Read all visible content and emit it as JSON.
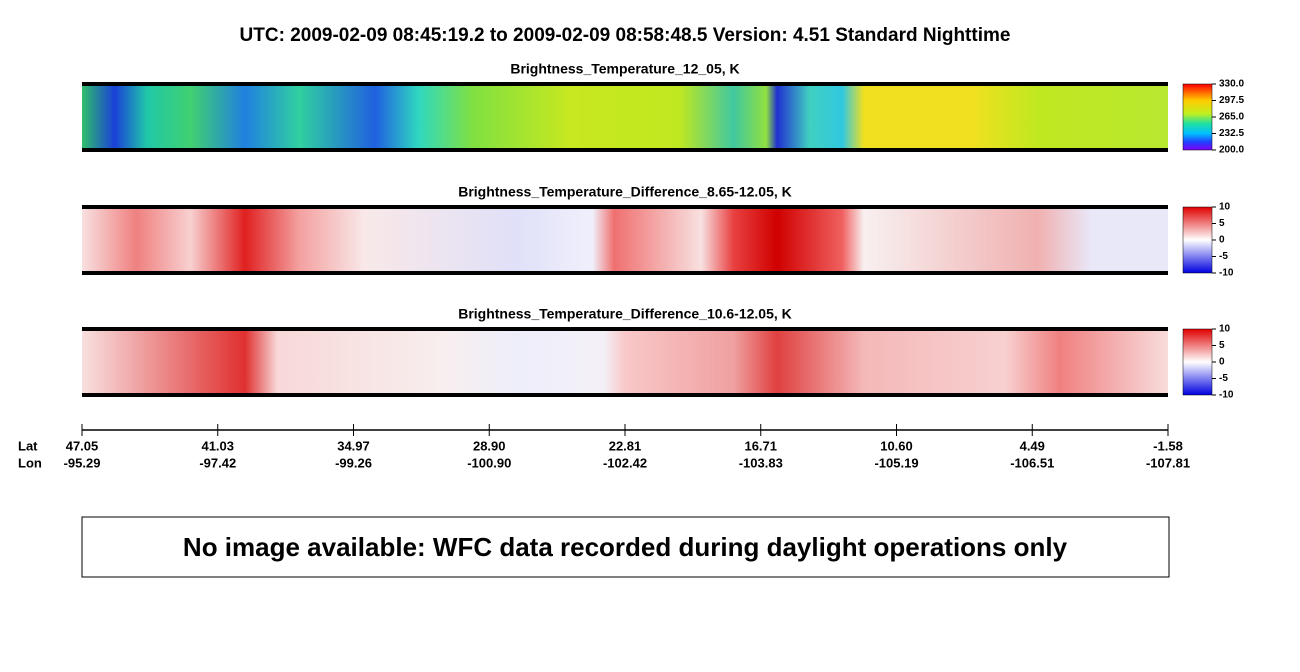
{
  "header": {
    "title": "UTC:  2009-02-09   08:45:19.2  to  2009-02-09   08:58:48.5    Version: 4.51  Standard Nighttime"
  },
  "panels": [
    {
      "title": "Brightness_Temperature_12_05, K",
      "colorbar_ticks": [
        "330.0",
        "297.5",
        "265.0",
        "232.5",
        "200.0"
      ]
    },
    {
      "title": "Brightness_Temperature_Difference_8.65-12.05, K",
      "colorbar_ticks": [
        "10",
        "5",
        "0",
        "-5",
        "-10"
      ]
    },
    {
      "title": "Brightness_Temperature_Difference_10.6-12.05, K",
      "colorbar_ticks": [
        "10",
        "5",
        "0",
        "-5",
        "-10"
      ]
    }
  ],
  "axis": {
    "lat_label": "Lat",
    "lon_label": "Lon",
    "ticks": [
      {
        "lat": "47.05",
        "lon": "-95.29"
      },
      {
        "lat": "41.03",
        "lon": "-97.42"
      },
      {
        "lat": "34.97",
        "lon": "-99.26"
      },
      {
        "lat": "28.90",
        "lon": "-100.90"
      },
      {
        "lat": "22.81",
        "lon": "-102.42"
      },
      {
        "lat": "16.71",
        "lon": "-103.83"
      },
      {
        "lat": "10.60",
        "lon": "-105.19"
      },
      {
        "lat": "4.49",
        "lon": "-106.51"
      },
      {
        "lat": "-1.58",
        "lon": "-107.81"
      }
    ]
  },
  "notice": "No image available: WFC data recorded during daylight operations only"
}
